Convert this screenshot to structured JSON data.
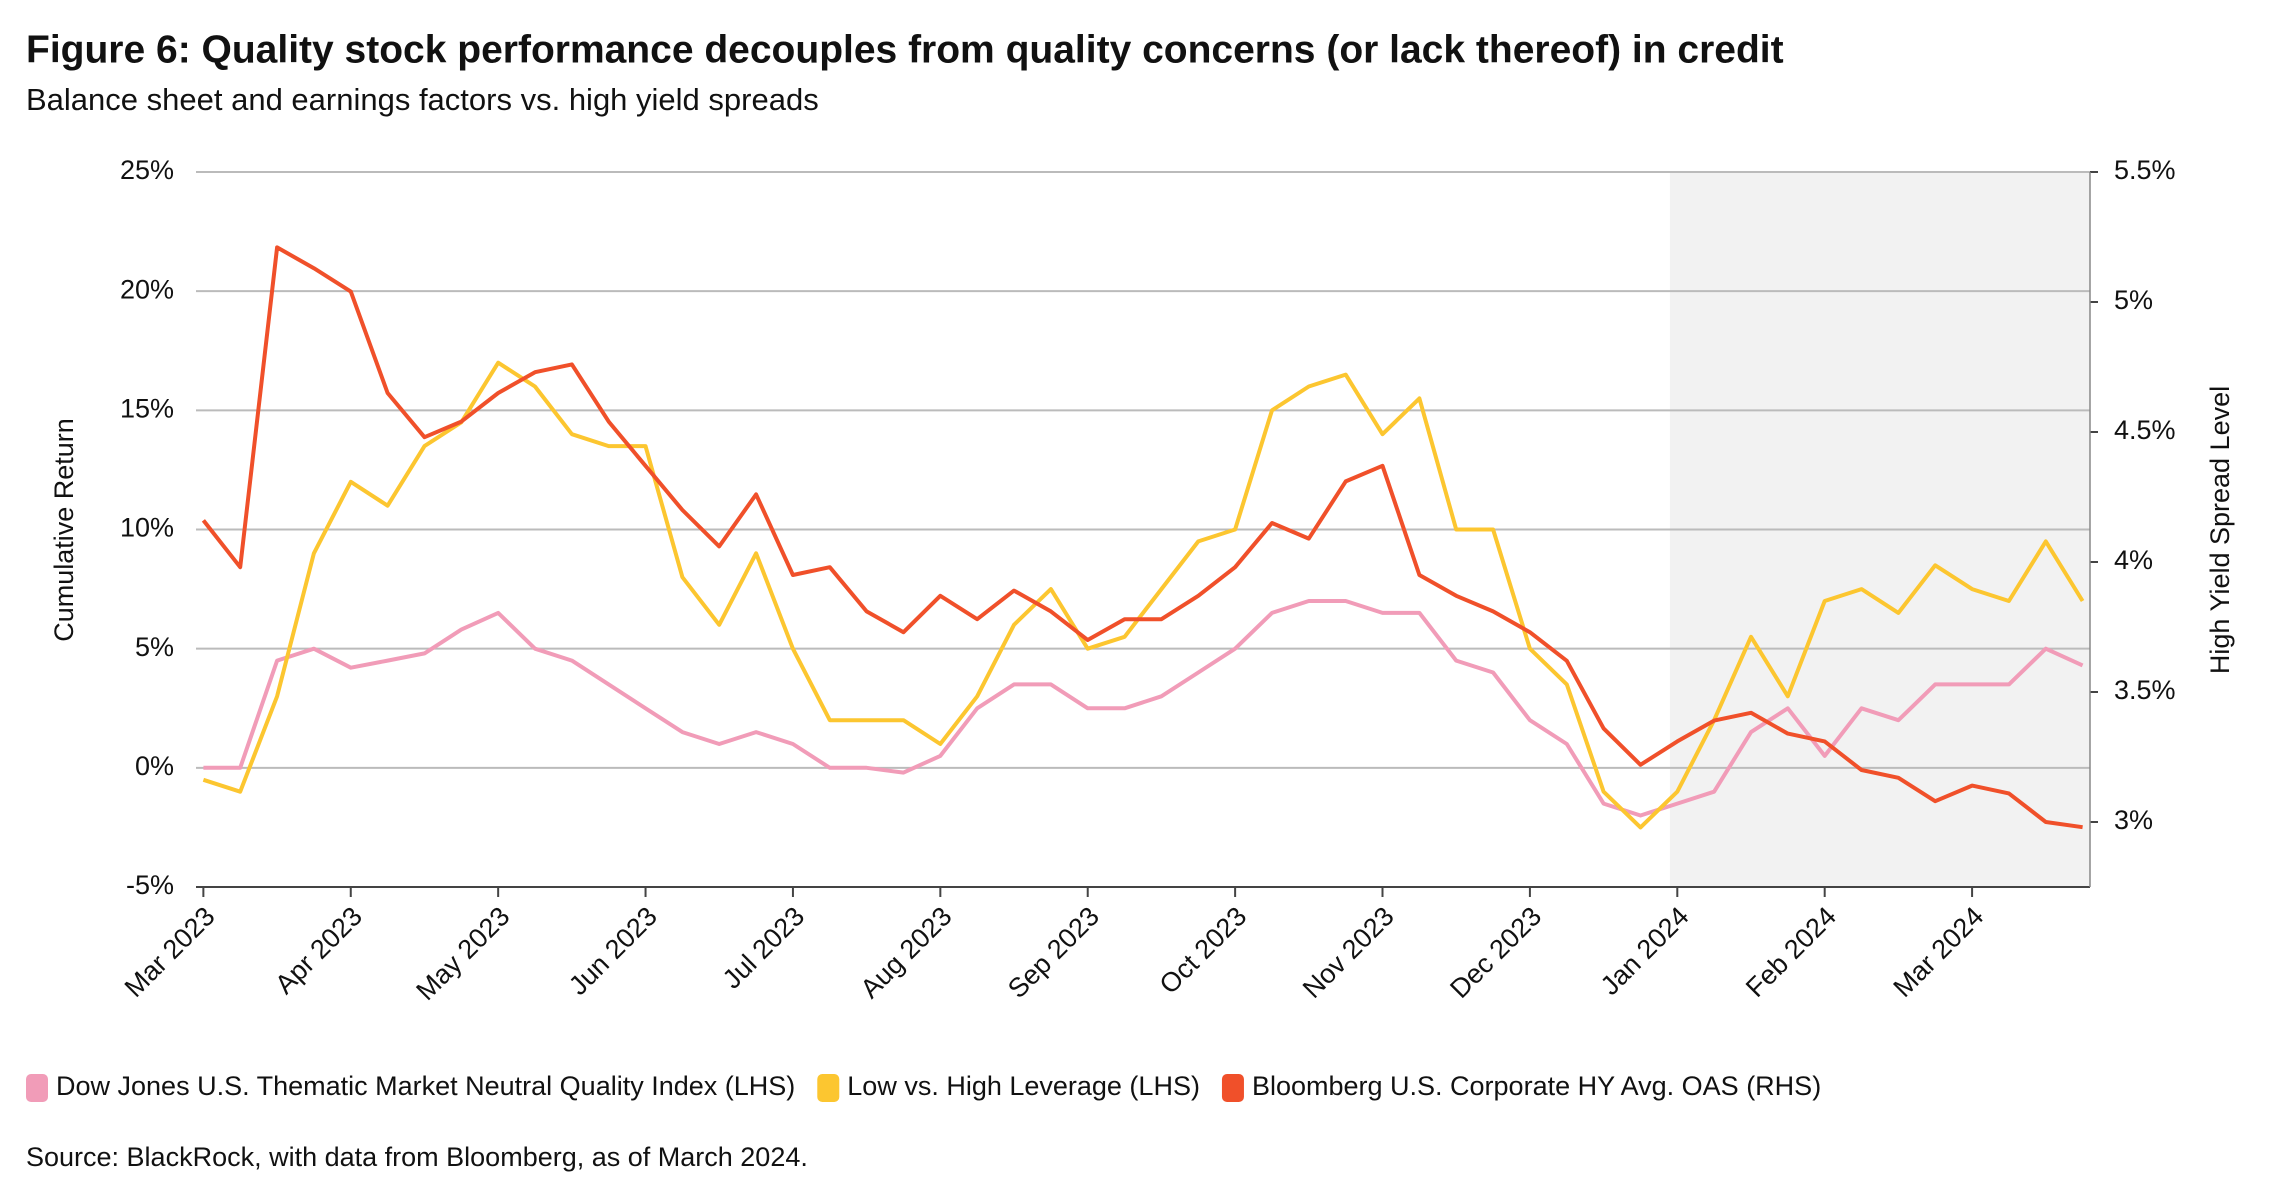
{
  "chart_data": {
    "type": "line",
    "title": "Figure 6: Quality stock performance decouples from quality concerns (or lack thereof) in credit",
    "subtitle": "Balance sheet and earnings factors vs. high yield spreads",
    "y_label": "Cumulative Return",
    "y2_label": "High Yield Spread Level",
    "source": "Source: BlackRock, with data from Bloomberg, as of March 2024.",
    "grid": true,
    "shade": [
      9.95,
      12.8
    ],
    "x": [
      0,
      0.25,
      0.5,
      0.75,
      1,
      1.25,
      1.5,
      1.75,
      2,
      2.25,
      2.5,
      2.75,
      3,
      3.25,
      3.5,
      3.75,
      4,
      4.25,
      4.5,
      4.75,
      5,
      5.25,
      5.5,
      5.75,
      6,
      6.25,
      6.5,
      6.75,
      7,
      7.25,
      7.5,
      7.75,
      8,
      8.25,
      8.5,
      8.75,
      9,
      9.25,
      9.5,
      9.75,
      10,
      10.25,
      10.5,
      10.75,
      11,
      11.25,
      11.5,
      11.75,
      12,
      12.25,
      12.5,
      12.75
    ],
    "xlim": [
      -0.05,
      12.8
    ],
    "xticks": [
      {
        "value": 0,
        "label": "Mar 2023"
      },
      {
        "value": 1,
        "label": "Apr 2023"
      },
      {
        "value": 2,
        "label": "May 2023"
      },
      {
        "value": 3,
        "label": "Jun 2023"
      },
      {
        "value": 4,
        "label": "Jul 2023"
      },
      {
        "value": 5,
        "label": "Aug 2023"
      },
      {
        "value": 6,
        "label": "Sep 2023"
      },
      {
        "value": 7,
        "label": "Oct 2023"
      },
      {
        "value": 8,
        "label": "Nov 2023"
      },
      {
        "value": 9,
        "label": "Dec 2023"
      },
      {
        "value": 10,
        "label": "Jan 2024"
      },
      {
        "value": 11,
        "label": "Feb 2024"
      },
      {
        "value": 12,
        "label": "Mar 2024"
      }
    ],
    "ylim": [
      -5,
      25
    ],
    "yticks": [
      {
        "value": -5,
        "label": "-5%"
      },
      {
        "value": 0,
        "label": "0%"
      },
      {
        "value": 5,
        "label": "5%"
      },
      {
        "value": 10,
        "label": "10%"
      },
      {
        "value": 15,
        "label": "15%"
      },
      {
        "value": 20,
        "label": "20%"
      },
      {
        "value": 25,
        "label": "25%"
      }
    ],
    "y2lim": [
      2.75,
      5.5
    ],
    "y2ticks": [
      {
        "value": 3,
        "label": "3%"
      },
      {
        "value": 3.5,
        "label": "3.5%"
      },
      {
        "value": 4,
        "label": "4%"
      },
      {
        "value": 4.5,
        "label": "4.5%"
      },
      {
        "value": 5,
        "label": "5%"
      },
      {
        "value": 5.5,
        "label": "5.5%"
      }
    ],
    "series": [
      {
        "name": "Dow Jones U.S. Thematic Market Neutral Quality Index (LHS)",
        "color": "#f19cb8",
        "values": [
          0,
          0,
          4.5,
          5,
          4.2,
          4.5,
          4.8,
          5.8,
          6.5,
          5,
          4.5,
          3.5,
          2.5,
          1.5,
          1,
          1.5,
          1,
          0,
          0,
          -0.2,
          0.5,
          2.5,
          3.5,
          3.5,
          2.5,
          2.5,
          3,
          4,
          5,
          6.5,
          7,
          7,
          6.5,
          6.5,
          4.5,
          4,
          2,
          1,
          -1.5,
          -2,
          -1.5,
          -1,
          1.5,
          2.5,
          0.5,
          2.5,
          2,
          3.5,
          3.5,
          3.5,
          5,
          4.3
        ]
      },
      {
        "name": "Low vs. High Leverage (LHS)",
        "color": "#fcc630",
        "values": [
          -0.5,
          -1,
          3,
          9,
          12,
          11,
          13.5,
          14.5,
          17,
          16,
          14,
          13.5,
          13.5,
          8,
          6,
          9,
          5,
          2,
          2,
          2,
          1,
          3,
          6,
          7.5,
          5,
          5.5,
          7.5,
          9.5,
          10,
          15,
          16,
          16.5,
          14,
          15.5,
          10,
          10,
          5,
          3.5,
          -1,
          -2.5,
          -1,
          2,
          5.5,
          3,
          7,
          7.5,
          6.5,
          8.5,
          7.5,
          7,
          9.5,
          7
        ]
      },
      {
        "name": "Bloomberg U.S. Corporate HY Avg. OAS (RHS)",
        "color": "#f0502a",
        "axis": "y2",
        "values": [
          4.16,
          3.98,
          5.21,
          5.13,
          5.04,
          4.65,
          4.48,
          4.54,
          4.65,
          4.73,
          4.76,
          4.54,
          4.37,
          4.2,
          4.06,
          4.26,
          3.95,
          3.98,
          3.81,
          3.73,
          3.87,
          3.78,
          3.89,
          3.81,
          3.7,
          3.78,
          3.78,
          3.87,
          3.98,
          4.15,
          4.09,
          4.31,
          4.37,
          3.95,
          3.87,
          3.81,
          3.73,
          3.62,
          3.36,
          3.22,
          3.31,
          3.39,
          3.42,
          3.34,
          3.31,
          3.2,
          3.17,
          3.08,
          3.14,
          3.11,
          3,
          2.98
        ]
      }
    ]
  }
}
